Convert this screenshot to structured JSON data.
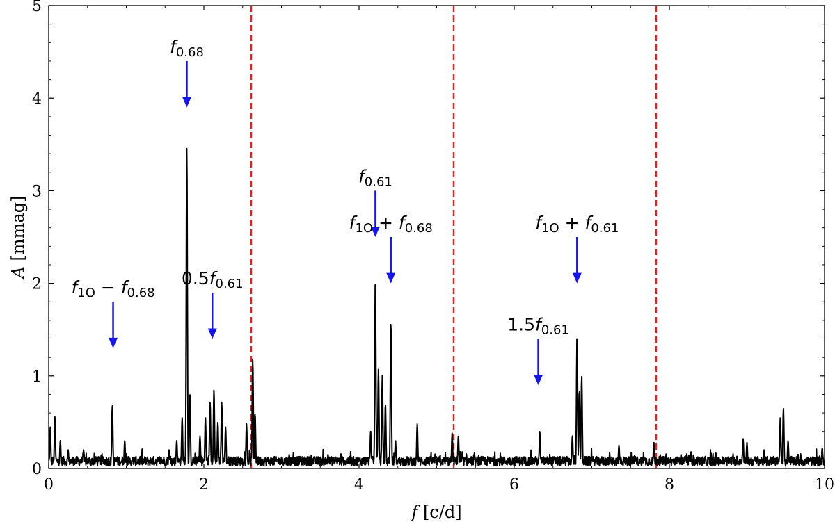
{
  "chart_data": {
    "type": "line",
    "xlabel": {
      "symbol": "f",
      "unit": " [c/d]"
    },
    "ylabel": {
      "symbol": "A",
      "unit": " [mmag]"
    },
    "xlim": [
      0,
      10
    ],
    "ylim": [
      0,
      5
    ],
    "x_ticks": [
      0,
      2,
      4,
      6,
      8,
      10
    ],
    "y_ticks": [
      0,
      1,
      2,
      3,
      4,
      5
    ],
    "grid": false,
    "line_color": "#000000",
    "peaks": [
      {
        "x": 0.02,
        "y": 0.45
      },
      {
        "x": 0.08,
        "y": 0.56
      },
      {
        "x": 0.15,
        "y": 0.3
      },
      {
        "x": 0.25,
        "y": 0.2
      },
      {
        "x": 0.45,
        "y": 0.2
      },
      {
        "x": 0.82,
        "y": 0.68
      },
      {
        "x": 0.98,
        "y": 0.3
      },
      {
        "x": 1.55,
        "y": 0.2
      },
      {
        "x": 1.65,
        "y": 0.3
      },
      {
        "x": 1.72,
        "y": 0.55
      },
      {
        "x": 1.78,
        "y": 3.48
      },
      {
        "x": 1.82,
        "y": 0.8
      },
      {
        "x": 1.95,
        "y": 0.35
      },
      {
        "x": 2.02,
        "y": 0.55
      },
      {
        "x": 2.08,
        "y": 0.72
      },
      {
        "x": 2.13,
        "y": 0.85
      },
      {
        "x": 2.18,
        "y": 0.5
      },
      {
        "x": 2.23,
        "y": 0.72
      },
      {
        "x": 2.28,
        "y": 0.45
      },
      {
        "x": 2.55,
        "y": 0.48
      },
      {
        "x": 2.63,
        "y": 1.18
      },
      {
        "x": 2.66,
        "y": 0.6
      },
      {
        "x": 3.1,
        "y": 0.15
      },
      {
        "x": 3.6,
        "y": 0.15
      },
      {
        "x": 4.15,
        "y": 0.4
      },
      {
        "x": 4.21,
        "y": 2.04
      },
      {
        "x": 4.25,
        "y": 1.07
      },
      {
        "x": 4.3,
        "y": 1.0
      },
      {
        "x": 4.34,
        "y": 0.7
      },
      {
        "x": 4.41,
        "y": 1.6
      },
      {
        "x": 4.47,
        "y": 0.3
      },
      {
        "x": 4.75,
        "y": 0.48
      },
      {
        "x": 5.2,
        "y": 0.38
      },
      {
        "x": 5.28,
        "y": 0.35
      },
      {
        "x": 5.7,
        "y": 0.12
      },
      {
        "x": 6.33,
        "y": 0.4
      },
      {
        "x": 6.75,
        "y": 0.35
      },
      {
        "x": 6.81,
        "y": 1.44
      },
      {
        "x": 6.84,
        "y": 0.85
      },
      {
        "x": 6.87,
        "y": 1.0
      },
      {
        "x": 7.35,
        "y": 0.25
      },
      {
        "x": 7.8,
        "y": 0.28
      },
      {
        "x": 8.15,
        "y": 0.15
      },
      {
        "x": 8.28,
        "y": 0.18
      },
      {
        "x": 8.95,
        "y": 0.32
      },
      {
        "x": 9.0,
        "y": 0.28
      },
      {
        "x": 9.43,
        "y": 0.55
      },
      {
        "x": 9.47,
        "y": 0.65
      },
      {
        "x": 9.53,
        "y": 0.3
      },
      {
        "x": 9.97,
        "y": 0.22
      }
    ],
    "vlines": {
      "x": [
        2.61,
        5.22,
        7.83
      ],
      "color": "#e8201c",
      "style": "dashed"
    },
    "annotations": [
      {
        "base": "f",
        "sub": "0.68",
        "arrow_from": 4.4,
        "arrow_to": 3.9,
        "x": 1.78
      },
      {
        "prefix": "0.5",
        "base": "f",
        "sub": "0.61",
        "arrow_from": 1.9,
        "arrow_to": 1.4,
        "x": 2.11
      },
      {
        "base": "f",
        "sub": "1O",
        "op": " − ",
        "base2": "f",
        "sub2": "0.68",
        "arrow_from": 1.8,
        "arrow_to": 1.3,
        "x": 0.83
      },
      {
        "base": "f",
        "sub": "0.61",
        "arrow_from": 3.0,
        "arrow_to": 2.5,
        "x": 4.21
      },
      {
        "base": "f",
        "sub": "1O",
        "op": " + ",
        "base2": "f",
        "sub2": "0.68",
        "arrow_from": 2.5,
        "arrow_to": 2.0,
        "x": 4.41
      },
      {
        "prefix": "1.5",
        "base": "f",
        "sub": "0.61",
        "arrow_from": 1.4,
        "arrow_to": 0.9,
        "x": 6.31
      },
      {
        "base": "f",
        "sub": "1O",
        "op": " + ",
        "base2": "f",
        "sub2": "0.61",
        "arrow_from": 2.5,
        "arrow_to": 2.0,
        "x": 6.81
      }
    ],
    "arrow_color": "#1515ee"
  }
}
